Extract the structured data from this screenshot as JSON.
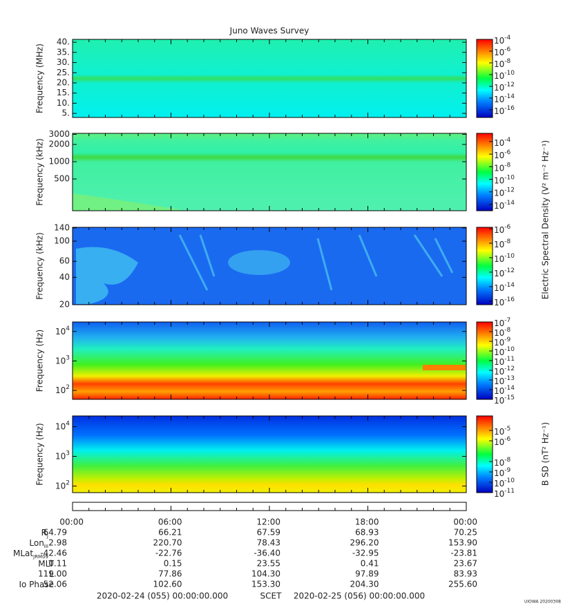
{
  "title": "Juno Waves Survey",
  "panels": [
    {
      "ylabel": "Frequency (MHz)",
      "log": false,
      "ylim": [
        3,
        41.4
      ],
      "yticks": [
        {
          "value": 40,
          "label": "40."
        },
        {
          "value": 35,
          "label": "35."
        },
        {
          "value": 30,
          "label": "30."
        },
        {
          "value": 25,
          "label": "25."
        },
        {
          "value": 20,
          "label": "20."
        },
        {
          "value": 15,
          "label": "15."
        },
        {
          "value": 10,
          "label": "10."
        },
        {
          "value": 5,
          "label": "5."
        }
      ],
      "colorbar": {
        "clim": [
          -17.3,
          -4
        ],
        "ticks": [
          {
            "base": "10",
            "exp": -4
          },
          {
            "base": "10",
            "exp": -6
          },
          {
            "base": "10",
            "exp": -8
          },
          {
            "base": "10",
            "exp": -10
          },
          {
            "base": "10",
            "exp": -12
          },
          {
            "base": "10",
            "exp": -14
          },
          {
            "base": "10",
            "exp": -16
          }
        ]
      }
    },
    {
      "ylabel": "Frequency (kHz)",
      "log": true,
      "ylim": [
        140,
        3120
      ],
      "yticks": [
        3000,
        2000,
        1000,
        500
      ],
      "colorbar": {
        "clim": [
          -15,
          -2.7
        ],
        "ticks": [
          {
            "base": "10",
            "exp": -4
          },
          {
            "base": "10",
            "exp": -6
          },
          {
            "base": "10",
            "exp": -8
          },
          {
            "base": "10",
            "exp": -10
          },
          {
            "base": "10",
            "exp": -12
          },
          {
            "base": "10",
            "exp": -14
          }
        ]
      }
    },
    {
      "ylabel": "Frequency (kHz)",
      "log": true,
      "ylim": [
        20,
        142
      ],
      "yticks": [
        140,
        100,
        60,
        40,
        20
      ],
      "colorbar": {
        "clim": [
          -16.5,
          -5.8
        ],
        "ticks": [
          {
            "base": "10",
            "exp": -6
          },
          {
            "base": "10",
            "exp": -8
          },
          {
            "base": "10",
            "exp": -10
          },
          {
            "base": "10",
            "exp": -12
          },
          {
            "base": "10",
            "exp": -14
          },
          {
            "base": "10",
            "exp": -16
          }
        ]
      }
    },
    {
      "ylabel": "Frequency (Hz)",
      "log": true,
      "ylim": [
        50,
        21000
      ],
      "yticks": [
        {
          "value": 10000,
          "base": "10",
          "exp": 4
        },
        {
          "value": 1000,
          "base": "10",
          "exp": 3
        },
        {
          "value": 100,
          "base": "10",
          "exp": 2
        }
      ],
      "colorbar": {
        "clim": [
          -15,
          -7
        ],
        "ticks": [
          {
            "base": "10",
            "exp": -7
          },
          {
            "base": "10",
            "exp": -8
          },
          {
            "base": "10",
            "exp": -9
          },
          {
            "base": "10",
            "exp": -10
          },
          {
            "base": "10",
            "exp": -11
          },
          {
            "base": "10",
            "exp": -12
          },
          {
            "base": "10",
            "exp": -13
          },
          {
            "base": "10",
            "exp": -14
          },
          {
            "base": "10",
            "exp": -15
          }
        ]
      }
    },
    {
      "ylabel": "Frequency (Hz)",
      "log": true,
      "ylim": [
        60,
        23000
      ],
      "yticks": [
        {
          "value": 10000,
          "base": "10",
          "exp": 4
        },
        {
          "value": 1000,
          "base": "10",
          "exp": 3
        },
        {
          "value": 100,
          "base": "10",
          "exp": 2
        }
      ],
      "colorbar": {
        "clim": [
          -11,
          -3.6
        ],
        "ticks": [
          {
            "base": "10",
            "exp": -5
          },
          {
            "base": "10",
            "exp": -6
          },
          {
            "base": "10",
            "exp": -8
          },
          {
            "base": "10",
            "exp": -9
          },
          {
            "base": "10",
            "exp": -10
          },
          {
            "base": "10",
            "exp": -11
          }
        ]
      }
    }
  ],
  "colorbar_labels": [
    "Electric Spectral Density (V² m⁻² Hz⁻¹)",
    "B SD (nT² Hz⁻¹)"
  ],
  "xticks": [
    "00:00",
    "06:00",
    "12:00",
    "18:00",
    "00:00"
  ],
  "ephemeris": [
    {
      "label": "R",
      "sub": "J",
      "values": [
        "64.79",
        "66.21",
        "67.59",
        "68.93",
        "70.25"
      ]
    },
    {
      "label": "Lon",
      "sub": "III",
      "values": [
        "2.98",
        "220.70",
        "78.43",
        "296.20",
        "153.90"
      ]
    },
    {
      "label": "MLat",
      "sub": "JRM09",
      "values": [
        "-42.46",
        "-22.76",
        "-36.40",
        "-32.95",
        "-23.81"
      ]
    },
    {
      "label": "MLT",
      "values": [
        "0.11",
        "0.15",
        "23.55",
        "0.41",
        "23.67"
      ]
    },
    {
      "label": "L",
      "values": [
        "119.00",
        "77.86",
        "104.30",
        "97.89",
        "83.93"
      ]
    },
    {
      "label": "Io Phase",
      "values": [
        "52.06",
        "102.60",
        "153.30",
        "204.30",
        "255.60"
      ]
    }
  ],
  "footer": {
    "start": "2020-02-24 (055) 00:00:00.000",
    "scet": "SCET",
    "end": "2020-02-25 (056) 00:00:00.000"
  },
  "stamp": "UIOWA 20200308"
}
